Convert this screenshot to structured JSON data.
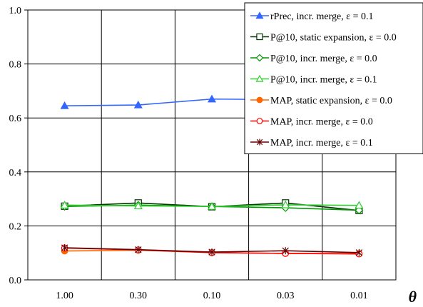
{
  "chart_data": {
    "type": "line",
    "title": "",
    "xlabel": "θ",
    "ylabel": "",
    "categories": [
      "1.00",
      "0.30",
      "0.10",
      "0.03",
      "0.01"
    ],
    "ylim": [
      0,
      1
    ],
    "yticks": [
      "0.0",
      "0.2",
      "0.4",
      "0.6",
      "0.8",
      "1.0"
    ],
    "grid": true,
    "legend_position": "top-right",
    "series": [
      {
        "name": "rPrec, incr. merge, ε = 0.1",
        "values": [
          0.645,
          0.648,
          0.67,
          0.668,
          0.675
        ],
        "color": "#3366ff",
        "marker": "triangle-filled"
      },
      {
        "name": "P@10, static expansion, ε = 0.0",
        "values": [
          0.273,
          0.285,
          0.271,
          0.285,
          0.257
        ],
        "color": "#003300",
        "marker": "square-open"
      },
      {
        "name": "P@10, incr. merge, ε = 0.0",
        "values": [
          0.272,
          0.277,
          0.272,
          0.267,
          0.258
        ],
        "color": "#009900",
        "marker": "diamond-open"
      },
      {
        "name": "P@10,  incr. merge, ε = 0.1",
        "values": [
          0.277,
          0.274,
          0.272,
          0.278,
          0.276
        ],
        "color": "#33cc33",
        "marker": "triangle-open"
      },
      {
        "name": "MAP,  static expansion, ε = 0.0",
        "values": [
          0.107,
          0.11,
          0.101,
          0.098,
          0.097
        ],
        "color": "#ff6600",
        "marker": "circle-filled"
      },
      {
        "name": "MAP,  incr. merge, ε = 0.0",
        "values": [
          0.118,
          0.111,
          0.101,
          0.098,
          0.096
        ],
        "color": "#ff0000",
        "marker": "circle-open"
      },
      {
        "name": "MAP,  incr. merge, ε = 0.1",
        "values": [
          0.119,
          0.112,
          0.103,
          0.108,
          0.101
        ],
        "color": "#660000",
        "marker": "asterisk"
      }
    ]
  }
}
